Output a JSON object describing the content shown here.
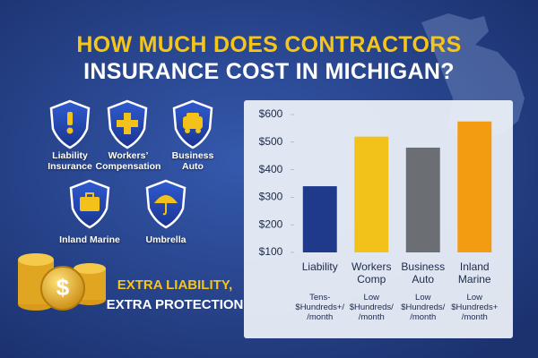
{
  "header": {
    "line1": "HOW MUCH DOES CONTRACTORS",
    "line2": "INSURANCE COST IN MICHIGAN?"
  },
  "coverages": [
    {
      "label": "Liability Insurance"
    },
    {
      "label": "Workers’ Compensation"
    },
    {
      "label": "Business Auto"
    },
    {
      "label": "Inland Marine"
    },
    {
      "label": "Umbrella"
    }
  ],
  "callout": {
    "line1": "EXTRA LIABILITY,",
    "line2": "EXTRA PROTECTION"
  },
  "chart_data": {
    "type": "bar",
    "categories": [
      "Liability",
      "Workers Comp",
      "Business Auto",
      "Inland Marine"
    ],
    "values": [
      340,
      520,
      480,
      575
    ],
    "colors": [
      "#1f3a8a",
      "#f2c21b",
      "#6b6e73",
      "#f39c12"
    ],
    "cost_notes": [
      "Tens- $Hundreds+/ /month",
      "Low $Hundreds/ /month",
      "Low $Hundreds/ /month",
      "Low $Hundreds+ /month"
    ],
    "ylim": [
      100,
      600
    ],
    "yticks": [
      {
        "value": 100,
        "label": "$100"
      },
      {
        "value": 200,
        "label": "$200"
      },
      {
        "value": 300,
        "label": "$300"
      },
      {
        "value": 400,
        "label": "$400"
      },
      {
        "value": 500,
        "label": "$500"
      },
      {
        "value": 600,
        "label": "$600"
      }
    ],
    "grid": false
  }
}
